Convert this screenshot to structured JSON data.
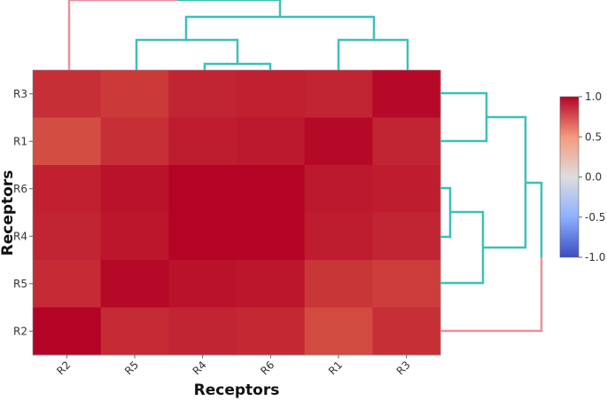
{
  "chart_data": {
    "type": "heatmap",
    "xlabel": "Receptors",
    "ylabel": "Receptors",
    "x_categories": [
      "R2",
      "R5",
      "R4",
      "R6",
      "R1",
      "R3"
    ],
    "y_categories": [
      "R3",
      "R1",
      "R6",
      "R4",
      "R5",
      "R2"
    ],
    "values": [
      [
        0.88,
        0.85,
        0.91,
        0.92,
        0.91,
        0.99
      ],
      [
        0.79,
        0.88,
        0.93,
        0.94,
        0.99,
        0.91
      ],
      [
        0.92,
        0.96,
        1.0,
        1.0,
        0.94,
        0.93
      ],
      [
        0.91,
        0.95,
        1.0,
        1.0,
        0.93,
        0.91
      ],
      [
        0.89,
        0.99,
        0.96,
        0.95,
        0.86,
        0.84
      ],
      [
        1.0,
        0.89,
        0.91,
        0.9,
        0.8,
        0.88
      ]
    ],
    "colorbar": {
      "min": -1.0,
      "max": 1.0,
      "ticks": [
        "1.0",
        "0.5",
        "0.0",
        "-0.5",
        "-1.0"
      ],
      "colors": [
        "#3b4cc0",
        "#dddddd",
        "#b40426"
      ]
    },
    "dendrogram_colors": {
      "cluster": "#3cc0b8",
      "outlier": "#e8909c"
    }
  }
}
